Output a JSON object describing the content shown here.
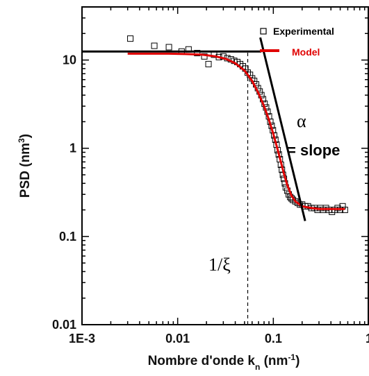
{
  "chart_data": {
    "type": "scatter",
    "xlabel_main": "Nombre d'onde k",
    "xlabel_sub": "n",
    "xlabel_unit_open": " (nm",
    "xlabel_unit_sup": "-1",
    "xlabel_unit_close": ")",
    "ylabel_main": "PSD (nm",
    "ylabel_sup": "3",
    "ylabel_close": ")",
    "x_scale": "log",
    "y_scale": "log",
    "xlim": [
      0.001,
      1
    ],
    "ylim": [
      0.01,
      40
    ],
    "x_tick_labels": [
      {
        "value": 0.001,
        "label": "1E-3"
      },
      {
        "value": 0.01,
        "label": "0.01"
      },
      {
        "value": 0.1,
        "label": "0.1"
      },
      {
        "value": 1,
        "label": "1"
      }
    ],
    "y_tick_labels": [
      {
        "value": 0.01,
        "label": "0.01"
      },
      {
        "value": 0.1,
        "label": "0.1"
      },
      {
        "value": 1,
        "label": "1"
      },
      {
        "value": 10,
        "label": "10"
      }
    ],
    "legend": [
      {
        "label": "Experimental",
        "marker": "open-square",
        "color": "#000000"
      },
      {
        "label": "Model",
        "marker": "line",
        "color": "#e00000"
      }
    ],
    "legend_position": "top-right",
    "series": [
      {
        "name": "Experimental",
        "marker": "open-square",
        "color": "#000000",
        "points": [
          [
            0.0032,
            17.5
          ],
          [
            0.0057,
            14.5
          ],
          [
            0.0081,
            14.0
          ],
          [
            0.011,
            12.5
          ],
          [
            0.013,
            13.2
          ],
          [
            0.016,
            12.0
          ],
          [
            0.019,
            11.0
          ],
          [
            0.021,
            9.0
          ],
          [
            0.024,
            11.5
          ],
          [
            0.027,
            10.8
          ],
          [
            0.03,
            11.0
          ],
          [
            0.033,
            10.5
          ],
          [
            0.036,
            10.2
          ],
          [
            0.039,
            9.8
          ],
          [
            0.042,
            9.5
          ],
          [
            0.045,
            9.0
          ],
          [
            0.048,
            8.5
          ],
          [
            0.051,
            8.0
          ],
          [
            0.054,
            7.2
          ],
          [
            0.057,
            6.8
          ],
          [
            0.06,
            6.2
          ],
          [
            0.063,
            5.8
          ],
          [
            0.066,
            5.3
          ],
          [
            0.069,
            4.8
          ],
          [
            0.072,
            4.4
          ],
          [
            0.075,
            4.0
          ],
          [
            0.078,
            3.6
          ],
          [
            0.081,
            3.2
          ],
          [
            0.084,
            2.9
          ],
          [
            0.087,
            2.6
          ],
          [
            0.09,
            2.3
          ],
          [
            0.093,
            2.0
          ],
          [
            0.096,
            1.8
          ],
          [
            0.099,
            1.6
          ],
          [
            0.102,
            1.4
          ],
          [
            0.105,
            1.25
          ],
          [
            0.108,
            1.1
          ],
          [
            0.111,
            0.95
          ],
          [
            0.114,
            0.85
          ],
          [
            0.117,
            0.75
          ],
          [
            0.12,
            0.65
          ],
          [
            0.123,
            0.57
          ],
          [
            0.126,
            0.5
          ],
          [
            0.129,
            0.45
          ],
          [
            0.132,
            0.4
          ],
          [
            0.135,
            0.36
          ],
          [
            0.14,
            0.33
          ],
          [
            0.145,
            0.3
          ],
          [
            0.15,
            0.28
          ],
          [
            0.155,
            0.27
          ],
          [
            0.16,
            0.26
          ],
          [
            0.17,
            0.25
          ],
          [
            0.18,
            0.24
          ],
          [
            0.19,
            0.23
          ],
          [
            0.2,
            0.23
          ],
          [
            0.215,
            0.22
          ],
          [
            0.23,
            0.22
          ],
          [
            0.25,
            0.21
          ],
          [
            0.27,
            0.21
          ],
          [
            0.29,
            0.2
          ],
          [
            0.31,
            0.21
          ],
          [
            0.33,
            0.2
          ],
          [
            0.355,
            0.21
          ],
          [
            0.38,
            0.2
          ],
          [
            0.41,
            0.19
          ],
          [
            0.44,
            0.2
          ],
          [
            0.47,
            0.21
          ],
          [
            0.5,
            0.2
          ],
          [
            0.53,
            0.22
          ],
          [
            0.56,
            0.2
          ]
        ]
      },
      {
        "name": "Model",
        "type": "line",
        "color": "#e00000",
        "points": [
          [
            0.003,
            11.8
          ],
          [
            0.005,
            11.8
          ],
          [
            0.008,
            11.8
          ],
          [
            0.012,
            11.7
          ],
          [
            0.018,
            11.5
          ],
          [
            0.025,
            11.0
          ],
          [
            0.032,
            10.3
          ],
          [
            0.04,
            9.2
          ],
          [
            0.05,
            7.6
          ],
          [
            0.06,
            5.8
          ],
          [
            0.07,
            4.2
          ],
          [
            0.08,
            3.0
          ],
          [
            0.09,
            2.1
          ],
          [
            0.1,
            1.45
          ],
          [
            0.11,
            1.0
          ],
          [
            0.12,
            0.7
          ],
          [
            0.13,
            0.5
          ],
          [
            0.14,
            0.38
          ],
          [
            0.155,
            0.29
          ],
          [
            0.17,
            0.25
          ],
          [
            0.2,
            0.22
          ],
          [
            0.25,
            0.21
          ],
          [
            0.3,
            0.205
          ],
          [
            0.4,
            0.205
          ],
          [
            0.56,
            0.205
          ]
        ]
      }
    ],
    "annotations": {
      "plateau_line": {
        "x": [
          0.001,
          0.075
        ],
        "y": 12.5,
        "color": "#000000"
      },
      "slope_line": {
        "from": [
          0.073,
          18
        ],
        "to": [
          0.215,
          0.15
        ],
        "color": "#000000"
      },
      "xi_line": {
        "x": 0.054,
        "y_from": 0.01,
        "y_to": 12.5,
        "style": "dashed"
      },
      "xi_label": "1/ξ",
      "alpha_label": "α",
      "slope_label": "= slope"
    }
  }
}
